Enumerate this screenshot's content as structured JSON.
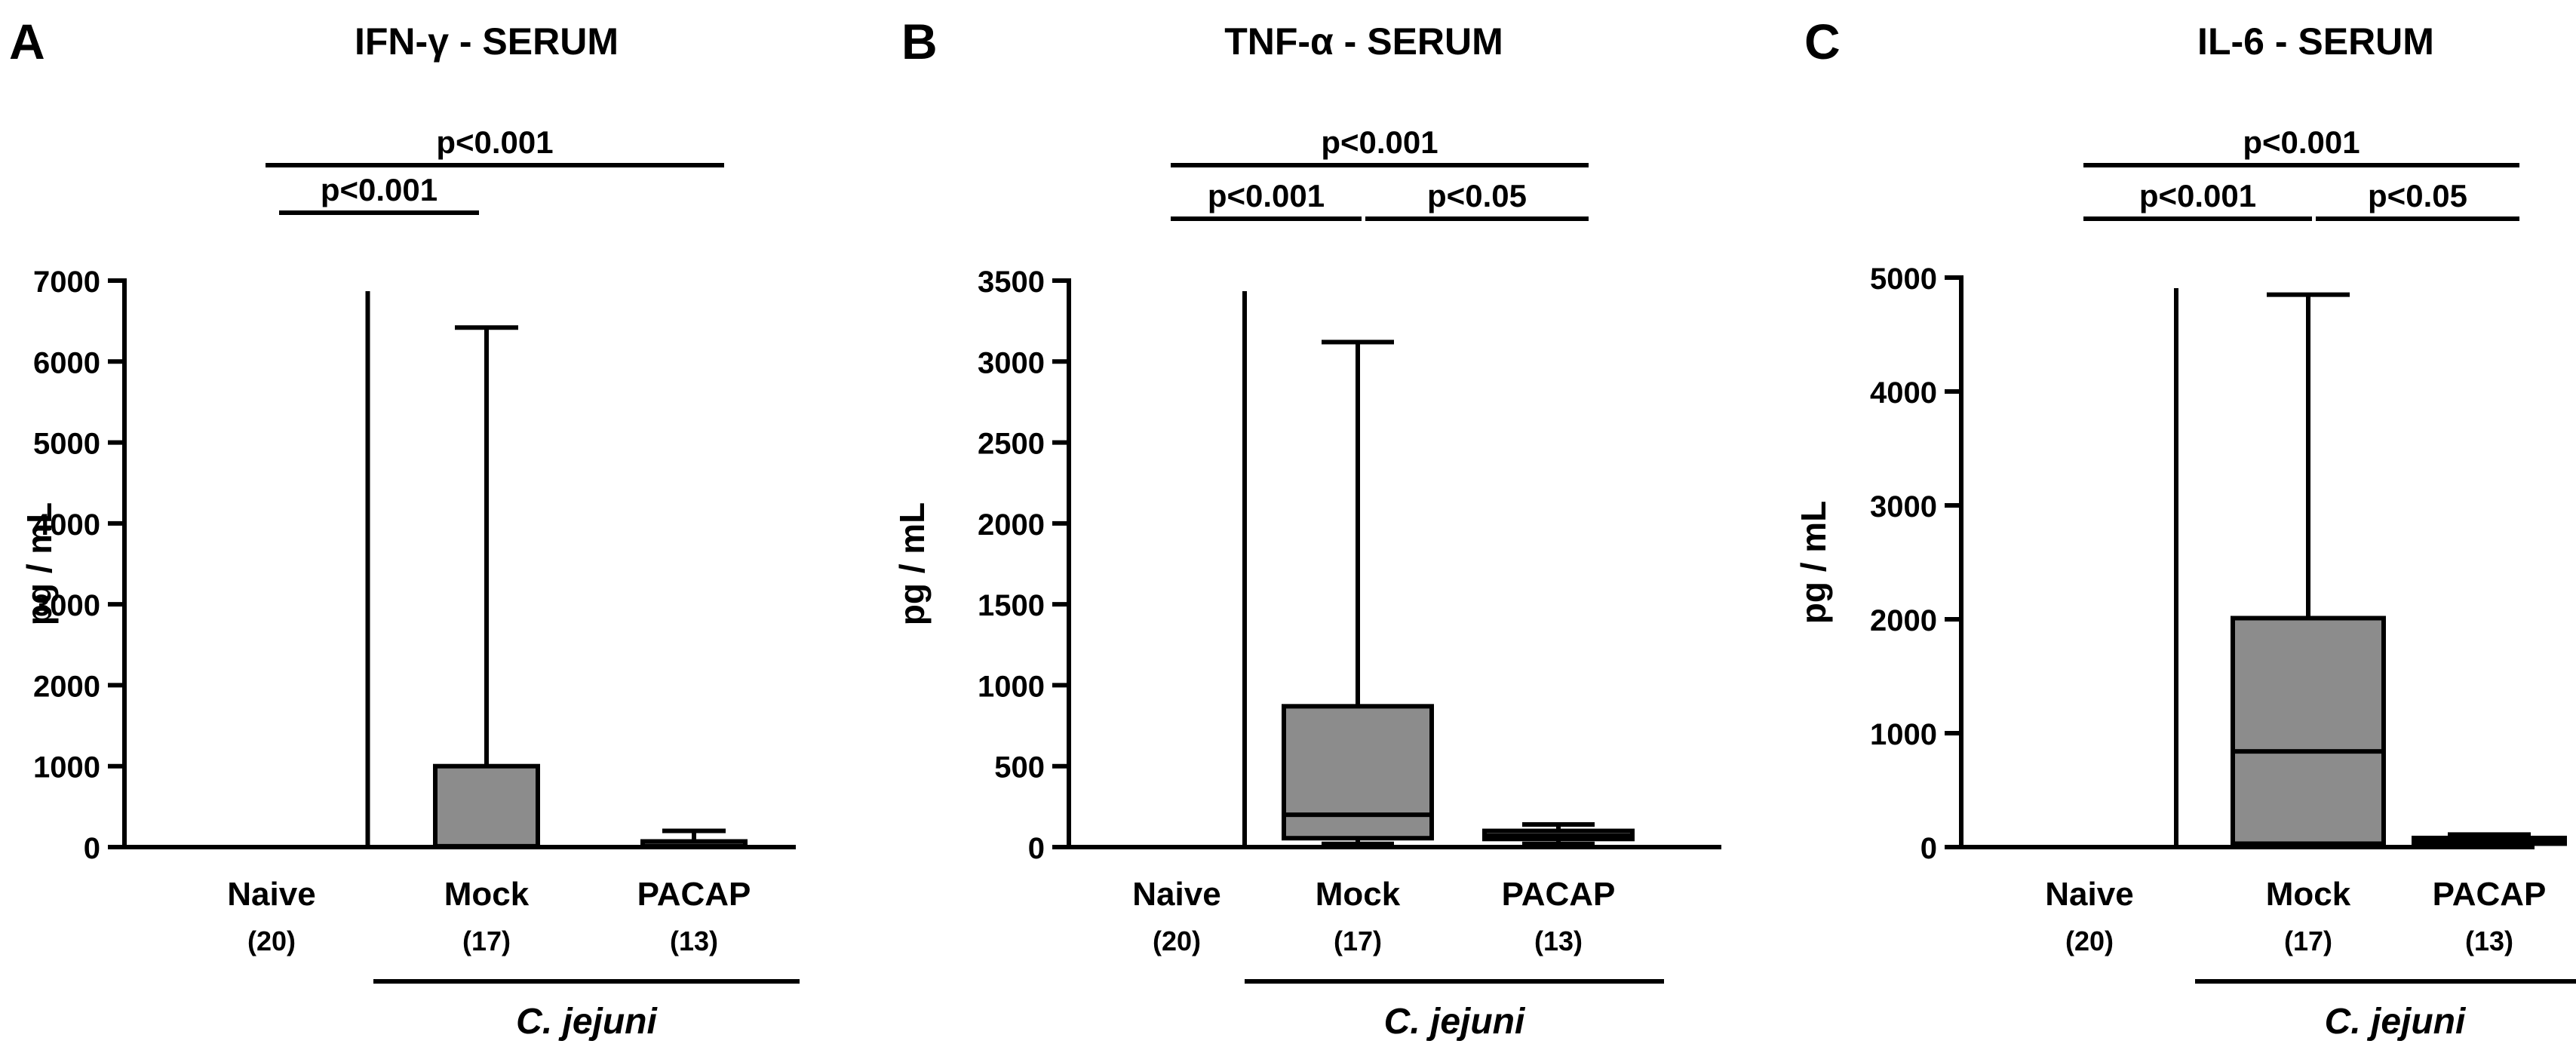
{
  "chart_data": [
    {
      "panel_letter": "A",
      "type": "box",
      "title": "IFN-γ - SERUM",
      "ylabel": "pg / mL",
      "ylim": [
        0,
        7000
      ],
      "yticks": [
        "0",
        "1000",
        "2000",
        "3000",
        "4000",
        "5000",
        "6000",
        "7000"
      ],
      "group_label": "C. jejuni",
      "groups": [
        {
          "label": "Naive",
          "n": "(20)",
          "min": 0,
          "q1": 0,
          "median": 0,
          "q3": 0,
          "max": 10
        },
        {
          "label": "Mock",
          "n": "(17)",
          "min": 0,
          "q1": 0,
          "median": 10,
          "q3": 1000,
          "max": 6420
        },
        {
          "label": "PACAP",
          "n": "(13)",
          "min": 0,
          "q1": 0,
          "median": 10,
          "q3": 70,
          "max": 200
        }
      ],
      "significance": [
        {
          "from": 0,
          "to": 1,
          "text": "p<0.001"
        },
        {
          "from": 0,
          "to": 2,
          "text": "p<0.001"
        }
      ]
    },
    {
      "panel_letter": "B",
      "type": "box",
      "title": "TNF-α - SERUM",
      "ylabel": "pg / mL",
      "ylim": [
        0,
        3500
      ],
      "yticks": [
        "0",
        "500",
        "1000",
        "1500",
        "2000",
        "2500",
        "3000",
        "3500"
      ],
      "group_label": "C. jejuni",
      "groups": [
        {
          "label": "Naive",
          "n": "(20)",
          "min": 0,
          "q1": 0,
          "median": 0,
          "q3": 0,
          "max": 10
        },
        {
          "label": "Mock",
          "n": "(17)",
          "min": 20,
          "q1": 55,
          "median": 200,
          "q3": 870,
          "max": 3120
        },
        {
          "label": "PACAP",
          "n": "(13)",
          "min": 20,
          "q1": 50,
          "median": 70,
          "q3": 100,
          "max": 140
        }
      ],
      "significance": [
        {
          "from": 0,
          "to": 1,
          "text": "p<0.001"
        },
        {
          "from": 1,
          "to": 2,
          "text": "p<0.05"
        },
        {
          "from": 0,
          "to": 2,
          "text": "p<0.001"
        }
      ]
    },
    {
      "panel_letter": "C",
      "type": "box",
      "title": "IL-6 - SERUM",
      "ylabel": "pg / mL",
      "ylim": [
        0,
        5000
      ],
      "yticks": [
        "0",
        "1000",
        "2000",
        "3000",
        "4000",
        "5000"
      ],
      "group_label": "C. jejuni",
      "groups": [
        {
          "label": "Naive",
          "n": "(20)",
          "min": 0,
          "q1": 0,
          "median": 0,
          "q3": 0,
          "max": 10
        },
        {
          "label": "Mock",
          "n": "(17)",
          "min": 10,
          "q1": 30,
          "median": 840,
          "q3": 2010,
          "max": 4850
        },
        {
          "label": "PACAP",
          "n": "(13)",
          "min": 10,
          "q1": 30,
          "median": 50,
          "q3": 80,
          "max": 110
        }
      ],
      "significance": [
        {
          "from": 0,
          "to": 1,
          "text": "p<0.001"
        },
        {
          "from": 1,
          "to": 2,
          "text": "p<0.05"
        },
        {
          "from": 0,
          "to": 2,
          "text": "p<0.001"
        }
      ]
    }
  ]
}
